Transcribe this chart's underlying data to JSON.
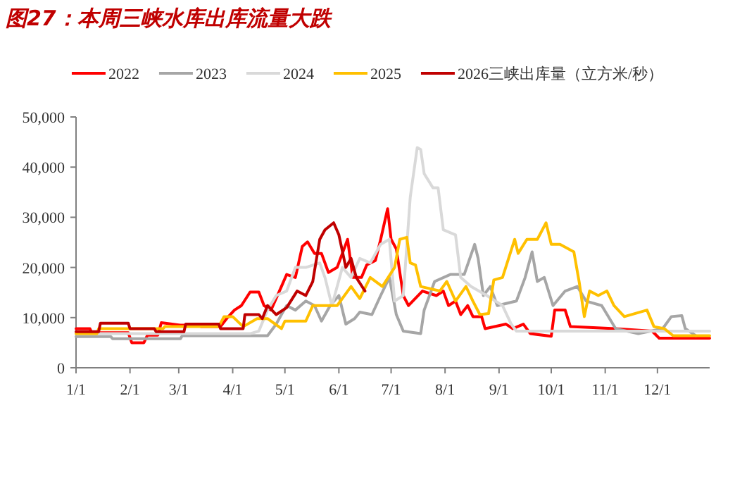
{
  "chart_data": {
    "type": "line",
    "title": "图27：本周三峡水库出库流量大跌",
    "legend": "top",
    "line_style": "solid",
    "marker": "none",
    "xlim": [
      "--01-01",
      "--12-31"
    ],
    "xticks": [
      {
        "value": "--01-01",
        "label": "1/1"
      },
      {
        "value": "--02-01",
        "label": "2/1"
      },
      {
        "value": "--03-01",
        "label": "3/1"
      },
      {
        "value": "--04-01",
        "label": "4/1"
      },
      {
        "value": "--05-01",
        "label": "5/1"
      },
      {
        "value": "--06-01",
        "label": "6/1"
      },
      {
        "value": "--07-01",
        "label": "7/1"
      },
      {
        "value": "--08-01",
        "label": "8/1"
      },
      {
        "value": "--09-01",
        "label": "9/1"
      },
      {
        "value": "--10-01",
        "label": "10/1"
      },
      {
        "value": "--11-01",
        "label": "11/1"
      },
      {
        "value": "--12-01",
        "label": "12/1"
      }
    ],
    "ylim": [
      0,
      50000
    ],
    "yticks": [
      0,
      {
        "value": 10000,
        "label": "10,000"
      },
      {
        "value": 20000,
        "label": "20,000"
      },
      {
        "value": 30000,
        "label": "30,000"
      },
      {
        "value": 40000,
        "label": "40,000"
      },
      {
        "value": 50000,
        "label": "50,000"
      }
    ],
    "series": [
      {
        "name": "2022",
        "color": "#ff0000",
        "x": [
          "--01-01",
          "--01-09",
          "--01-10",
          "--01-31",
          "--02-02",
          "--02-09",
          "--02-11",
          "--02-17",
          "--02-19",
          "--03-02",
          "--03-11",
          "--03-14",
          "--03-25",
          "--03-29",
          "--04-02",
          "--04-06",
          "--04-11",
          "--04-16",
          "--04-19",
          "--04-23",
          "--04-29",
          "--05-02",
          "--05-07",
          "--05-11",
          "--05-14",
          "--05-18",
          "--05-22",
          "--05-26",
          "--05-31",
          "--06-06",
          "--06-09",
          "--06-14",
          "--06-17",
          "--06-22",
          "--06-25",
          "--06-29",
          "--07-01",
          "--07-04",
          "--07-08",
          "--07-11",
          "--07-19",
          "--07-27",
          "--07-31",
          "--08-03",
          "--08-07",
          "--08-10",
          "--08-14",
          "--08-17",
          "--08-22",
          "--08-24",
          "--09-05",
          "--09-09",
          "--09-15",
          "--09-19",
          "--10-01",
          "--10-03",
          "--10-09",
          "--10-12",
          "--11-07",
          "--11-28",
          "--12-02",
          "--12-31"
        ],
        "values": [
          7800,
          7800,
          7000,
          7000,
          5000,
          5000,
          6500,
          6500,
          9000,
          8500,
          8500,
          8200,
          8200,
          10000,
          11500,
          12400,
          15100,
          15100,
          12400,
          11500,
          16200,
          18600,
          18000,
          24200,
          25100,
          22800,
          22800,
          19000,
          20000,
          25600,
          18000,
          18000,
          20500,
          21400,
          25600,
          31700,
          25600,
          23700,
          14400,
          12400,
          15300,
          14400,
          15300,
          12400,
          13300,
          10600,
          12400,
          10200,
          10200,
          7800,
          8700,
          7800,
          8700,
          6800,
          6300,
          11500,
          11500,
          8200,
          7800,
          7300,
          5900,
          5900
        ]
      },
      {
        "name": "2023",
        "color": "#a6a6a6",
        "x": [
          "--01-01",
          "--01-21",
          "--01-22",
          "--03-02",
          "--03-03",
          "--04-21",
          "--04-26",
          "--04-29",
          "--05-02",
          "--05-07",
          "--05-13",
          "--05-18",
          "--05-22",
          "--05-27",
          "--06-01",
          "--06-05",
          "--06-10",
          "--06-13",
          "--06-20",
          "--06-25",
          "--06-30",
          "--07-04",
          "--07-08",
          "--07-18",
          "--07-20",
          "--07-26",
          "--08-04",
          "--08-12",
          "--08-18",
          "--08-20",
          "--08-23",
          "--08-27",
          "--08-31",
          "--09-11",
          "--09-16",
          "--09-20",
          "--09-23",
          "--09-27",
          "--10-02",
          "--10-09",
          "--10-16",
          "--10-21",
          "--10-30",
          "--11-07",
          "--11-20",
          "--12-04",
          "--12-09",
          "--12-15",
          "--12-17",
          "--12-23"
        ],
        "values": [
          6200,
          6200,
          5800,
          5800,
          6400,
          6400,
          8700,
          10600,
          12400,
          11500,
          13300,
          12400,
          9300,
          12400,
          14400,
          8700,
          9800,
          11100,
          10600,
          14400,
          18000,
          10600,
          7300,
          6800,
          11500,
          17200,
          18600,
          18600,
          24600,
          21800,
          14400,
          16200,
          12400,
          13300,
          18000,
          23100,
          17200,
          18000,
          12400,
          15300,
          16200,
          13300,
          12400,
          7800,
          6800,
          7800,
          10200,
          10400,
          7800,
          6400
        ]
      },
      {
        "name": "2024",
        "color": "#d9d9d9",
        "x": [
          "--01-01",
          "--04-11",
          "--04-16",
          "--04-21",
          "--04-26",
          "--05-02",
          "--05-07",
          "--05-13",
          "--05-21",
          "--05-24",
          "--05-28",
          "--06-03",
          "--06-08",
          "--06-13",
          "--06-19",
          "--06-25",
          "--06-30",
          "--07-03",
          "--07-08",
          "--07-12",
          "--07-16",
          "--07-18",
          "--07-20",
          "--07-25",
          "--07-28",
          "--07-31",
          "--08-07",
          "--08-10",
          "--08-16",
          "--08-25",
          "--09-03",
          "--09-08",
          "--09-11",
          "--12-31"
        ],
        "values": [
          6800,
          6800,
          7300,
          11500,
          14400,
          15300,
          20000,
          20000,
          20900,
          18000,
          12400,
          20000,
          18000,
          21800,
          20900,
          24600,
          25600,
          13300,
          14400,
          34000,
          43900,
          43500,
          38700,
          35900,
          35900,
          27500,
          26500,
          18000,
          16200,
          14400,
          12400,
          8700,
          7300,
          7300
        ]
      },
      {
        "name": "2025",
        "color": "#ffc000",
        "x": [
          "--01-01",
          "--01-13",
          "--01-14",
          "--02-20",
          "--02-21",
          "--03-24",
          "--03-27",
          "--04-01",
          "--04-07",
          "--04-15",
          "--04-21",
          "--04-29",
          "--05-01",
          "--05-13",
          "--05-17",
          "--05-31",
          "--06-08",
          "--06-13",
          "--06-19",
          "--06-26",
          "--07-03",
          "--07-06",
          "--07-10",
          "--07-12",
          "--07-15",
          "--07-18",
          "--07-29",
          "--08-02",
          "--08-07",
          "--08-13",
          "--08-17",
          "--08-21",
          "--08-26",
          "--08-29",
          "--09-03",
          "--09-10",
          "--09-12",
          "--09-17",
          "--09-23",
          "--09-28",
          "--10-01",
          "--10-06",
          "--10-14",
          "--10-17",
          "--10-20",
          "--10-23",
          "--10-28",
          "--11-02",
          "--11-06",
          "--11-12",
          "--11-25",
          "--11-29",
          "--12-05",
          "--12-10",
          "--12-31"
        ],
        "values": [
          6800,
          6800,
          7800,
          7800,
          8200,
          8200,
          10200,
          10200,
          8200,
          9800,
          9800,
          7800,
          9300,
          9300,
          12400,
          12400,
          16200,
          13800,
          18000,
          16200,
          20000,
          25600,
          26000,
          20900,
          20500,
          16200,
          15300,
          17200,
          13300,
          16200,
          13300,
          10600,
          10800,
          17500,
          18000,
          25600,
          22800,
          25600,
          25600,
          28900,
          24600,
          24600,
          23100,
          17200,
          10200,
          15300,
          14400,
          15300,
          12400,
          10200,
          11500,
          8200,
          7800,
          6400,
          6400
        ]
      },
      {
        "name": "2026三峡出库量（立方米/秒）",
        "color": "#c00000",
        "x": [
          "--01-01",
          "--01-14",
          "--01-15",
          "--01-31",
          "--02-01",
          "--02-15",
          "--02-16",
          "--03-04",
          "--03-05",
          "--03-24",
          "--03-25",
          "--04-07",
          "--04-08",
          "--04-16",
          "--04-18",
          "--04-21",
          "--04-26",
          "--05-02",
          "--05-08",
          "--05-13",
          "--05-17",
          "--05-21",
          "--05-24",
          "--05-29",
          "--06-01",
          "--06-05",
          "--06-08",
          "--06-11",
          "--06-16"
        ],
        "values": [
          7200,
          7200,
          8900,
          8900,
          7800,
          7800,
          7200,
          7200,
          8700,
          8700,
          7800,
          7800,
          10600,
          10600,
          9800,
          12400,
          10600,
          12000,
          15300,
          14400,
          17200,
          25600,
          27500,
          28900,
          26500,
          20000,
          21800,
          18000,
          15300
        ]
      }
    ]
  }
}
